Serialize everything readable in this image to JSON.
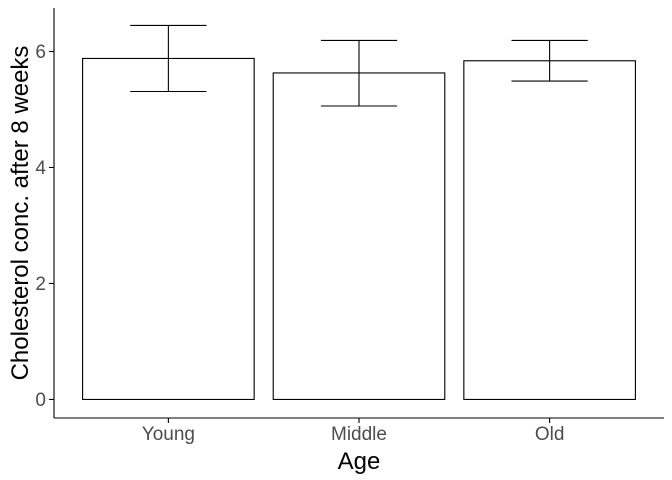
{
  "chart_data": {
    "type": "bar",
    "title": "",
    "xlabel": "Age",
    "ylabel": "Cholesterol conc. after 8 weeks",
    "categories": [
      "Young",
      "Middle",
      "Old"
    ],
    "values": [
      5.88,
      5.63,
      5.84
    ],
    "error_low": [
      5.31,
      5.06,
      5.49
    ],
    "error_high": [
      6.45,
      6.19,
      6.19
    ],
    "ylim": [
      -0.32,
      6.75
    ],
    "yticks": [
      0,
      2,
      4,
      6
    ],
    "ytick_labels": [
      "0",
      "2",
      "4",
      "6"
    ],
    "grid": false,
    "legend": "none",
    "colors": {
      "bar_fill": "#ffffff",
      "bar_stroke": "#000000",
      "axis": "#000000",
      "tick_text": "#4d4d4d"
    }
  }
}
